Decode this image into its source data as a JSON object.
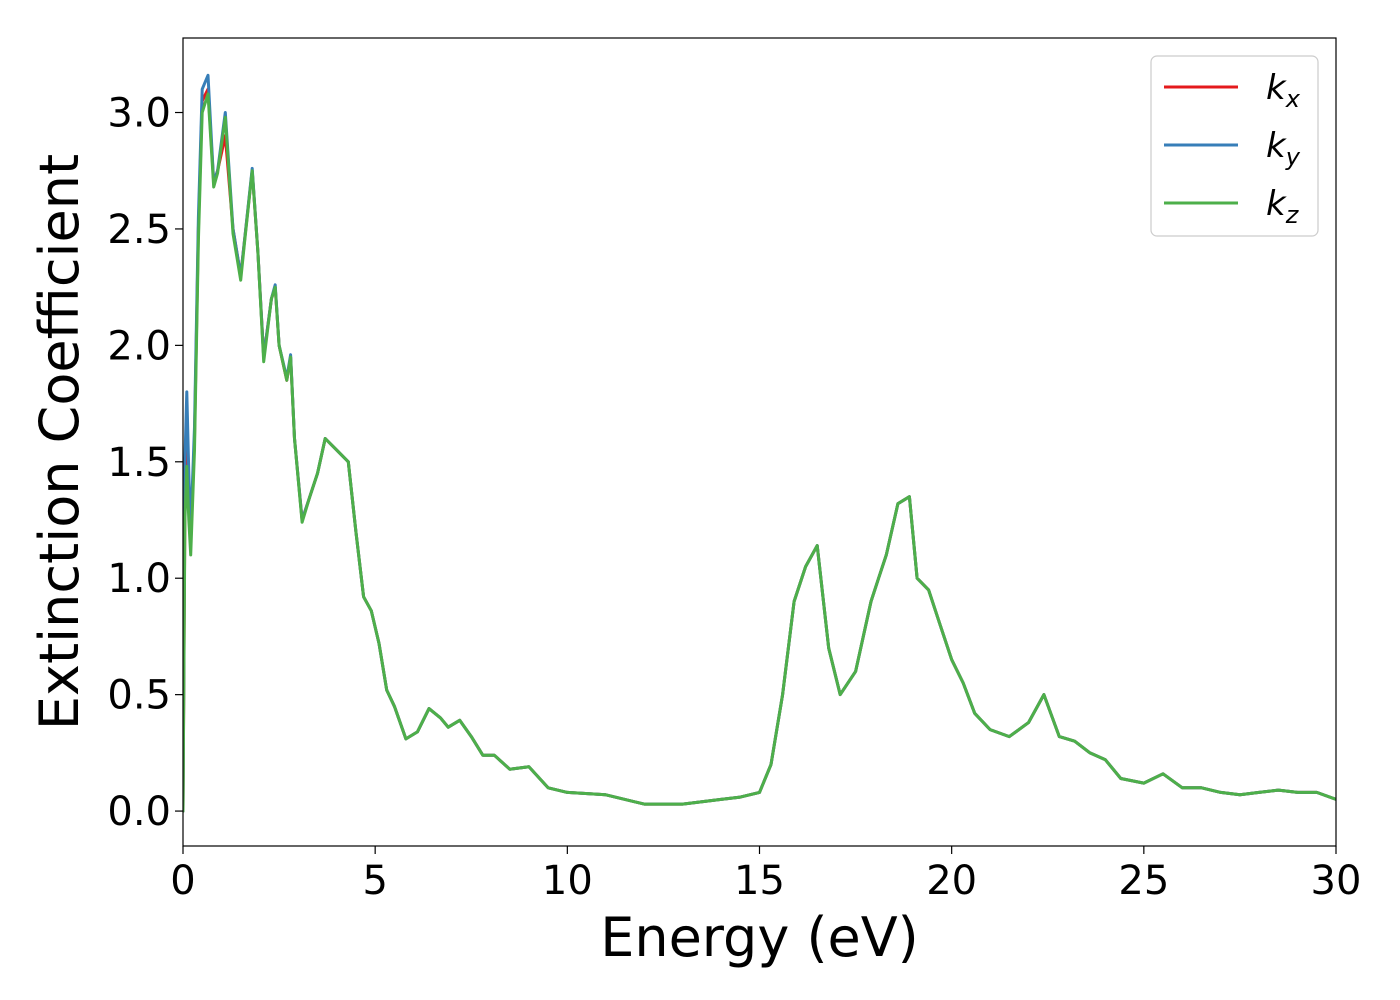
{
  "chart_data": {
    "type": "line",
    "title": "",
    "xlabel": "Energy (eV)",
    "ylabel": "Extinction Coefficient",
    "xlim": [
      0,
      30
    ],
    "ylim": [
      -0.15,
      3.32
    ],
    "xticks": [
      0,
      5,
      10,
      15,
      20,
      25,
      30
    ],
    "xtick_labels": [
      "0",
      "5",
      "10",
      "15",
      "20",
      "25",
      "30"
    ],
    "yticks": [
      0.0,
      0.5,
      1.0,
      1.5,
      2.0,
      2.5,
      3.0
    ],
    "ytick_labels": [
      "0.0",
      "0.5",
      "1.0",
      "1.5",
      "2.0",
      "2.5",
      "3.0"
    ],
    "grid": false,
    "legend_position": "top-right",
    "series": [
      {
        "name": "k",
        "subscript": "x",
        "color": "#e41a1c",
        "x": [
          0,
          0.05,
          0.1,
          0.15,
          0.2,
          0.3,
          0.4,
          0.5,
          0.65,
          0.8,
          0.9,
          1.1,
          1.3,
          1.5,
          1.6,
          1.8,
          1.95,
          2.1,
          2.3,
          2.4,
          2.5,
          2.7,
          2.8,
          2.9,
          3.1,
          3.3,
          3.5,
          3.7,
          4.0,
          4.3,
          4.5,
          4.7,
          4.9,
          5.1,
          5.3,
          5.5,
          5.8,
          6.1,
          6.4,
          6.7,
          6.9,
          7.2,
          7.5,
          7.8,
          8.1,
          8.5,
          9.0,
          9.5,
          10,
          11,
          12,
          13,
          14,
          14.5,
          15,
          15.3,
          15.6,
          15.9,
          16.2,
          16.5,
          16.8,
          17.1,
          17.5,
          17.9,
          18.1,
          18.3,
          18.6,
          18.9,
          19.1,
          19.4,
          19.7,
          20.0,
          20.3,
          20.6,
          21.0,
          21.5,
          22.0,
          22.4,
          22.8,
          23.2,
          23.6,
          24.0,
          24.4,
          25.0,
          25.5,
          26.0,
          26.5,
          27.0,
          27.5,
          28.0,
          28.5,
          29.0,
          29.5,
          30
        ],
        "y": [
          0,
          1.3,
          1.55,
          1.3,
          1.15,
          1.6,
          2.5,
          3.05,
          3.1,
          2.7,
          2.75,
          2.9,
          2.5,
          2.3,
          2.45,
          2.75,
          2.4,
          1.95,
          2.2,
          2.25,
          2.0,
          1.85,
          1.95,
          1.6,
          1.25,
          1.35,
          1.45,
          1.6,
          1.55,
          1.5,
          1.2,
          0.92,
          0.86,
          0.72,
          0.52,
          0.45,
          0.31,
          0.34,
          0.44,
          0.4,
          0.36,
          0.39,
          0.32,
          0.24,
          0.24,
          0.18,
          0.19,
          0.1,
          0.08,
          0.07,
          0.03,
          0.03,
          0.05,
          0.06,
          0.08,
          0.2,
          0.5,
          0.9,
          1.05,
          1.14,
          0.7,
          0.5,
          0.6,
          0.9,
          1.0,
          1.1,
          1.32,
          1.35,
          1.0,
          0.95,
          0.8,
          0.65,
          0.55,
          0.42,
          0.35,
          0.32,
          0.38,
          0.5,
          0.32,
          0.3,
          0.25,
          0.22,
          0.14,
          0.12,
          0.16,
          0.1,
          0.1,
          0.08,
          0.07,
          0.08,
          0.09,
          0.08,
          0.08,
          0.05
        ]
      },
      {
        "name": "k",
        "subscript": "y",
        "color": "#377eb8",
        "x": [
          0,
          0.05,
          0.1,
          0.15,
          0.2,
          0.3,
          0.4,
          0.5,
          0.65,
          0.8,
          0.9,
          1.1,
          1.3,
          1.5,
          1.6,
          1.8,
          1.95,
          2.1,
          2.3,
          2.4,
          2.5,
          2.7,
          2.8,
          2.9,
          3.1,
          3.3,
          3.5,
          3.7,
          4.0,
          4.3,
          4.5,
          4.7,
          4.9,
          5.1,
          5.3,
          5.5,
          5.8,
          6.1,
          6.4,
          6.7,
          6.9,
          7.2,
          7.5,
          7.8,
          8.1,
          8.5,
          9.0,
          9.5,
          10,
          11,
          12,
          13,
          14,
          14.5,
          15,
          15.3,
          15.6,
          15.9,
          16.2,
          16.5,
          16.8,
          17.1,
          17.5,
          17.9,
          18.1,
          18.3,
          18.6,
          18.9,
          19.1,
          19.4,
          19.7,
          20.0,
          20.3,
          20.6,
          21.0,
          21.5,
          22.0,
          22.4,
          22.8,
          23.2,
          23.6,
          24.0,
          24.4,
          25.0,
          25.5,
          26.0,
          26.5,
          27.0,
          27.5,
          28.0,
          28.5,
          29.0,
          29.5,
          30
        ],
        "y": [
          0,
          1.5,
          1.8,
          1.45,
          1.2,
          1.65,
          2.55,
          3.1,
          3.16,
          2.7,
          2.75,
          3.0,
          2.5,
          2.3,
          2.45,
          2.76,
          2.4,
          1.95,
          2.2,
          2.26,
          2.0,
          1.86,
          1.96,
          1.6,
          1.25,
          1.35,
          1.45,
          1.6,
          1.55,
          1.5,
          1.2,
          0.92,
          0.86,
          0.72,
          0.52,
          0.45,
          0.31,
          0.34,
          0.44,
          0.4,
          0.36,
          0.39,
          0.32,
          0.24,
          0.24,
          0.18,
          0.19,
          0.1,
          0.08,
          0.07,
          0.03,
          0.03,
          0.05,
          0.06,
          0.08,
          0.2,
          0.5,
          0.9,
          1.05,
          1.14,
          0.7,
          0.5,
          0.6,
          0.9,
          1.0,
          1.1,
          1.32,
          1.35,
          1.0,
          0.95,
          0.8,
          0.65,
          0.55,
          0.42,
          0.35,
          0.32,
          0.38,
          0.5,
          0.32,
          0.3,
          0.25,
          0.22,
          0.14,
          0.12,
          0.16,
          0.1,
          0.1,
          0.08,
          0.07,
          0.08,
          0.09,
          0.08,
          0.08,
          0.05
        ]
      },
      {
        "name": "k",
        "subscript": "z",
        "color": "#4daf4a",
        "x": [
          0,
          0.05,
          0.1,
          0.15,
          0.2,
          0.3,
          0.4,
          0.5,
          0.65,
          0.8,
          0.9,
          1.1,
          1.3,
          1.5,
          1.6,
          1.8,
          1.95,
          2.1,
          2.3,
          2.4,
          2.5,
          2.7,
          2.8,
          2.9,
          3.1,
          3.3,
          3.5,
          3.7,
          4.0,
          4.3,
          4.5,
          4.7,
          4.9,
          5.1,
          5.3,
          5.5,
          5.8,
          6.1,
          6.4,
          6.7,
          6.9,
          7.2,
          7.5,
          7.8,
          8.1,
          8.5,
          9.0,
          9.5,
          10,
          11,
          12,
          13,
          14,
          14.5,
          15,
          15.3,
          15.6,
          15.9,
          16.2,
          16.5,
          16.8,
          17.1,
          17.5,
          17.9,
          18.1,
          18.3,
          18.6,
          18.9,
          19.1,
          19.4,
          19.7,
          20.0,
          20.3,
          20.6,
          21.0,
          21.5,
          22.0,
          22.4,
          22.8,
          23.2,
          23.6,
          24.0,
          24.4,
          25.0,
          25.5,
          26.0,
          26.5,
          27.0,
          27.5,
          28.0,
          28.5,
          29.0,
          29.5,
          30
        ],
        "y": [
          0,
          1.25,
          1.48,
          1.25,
          1.1,
          1.55,
          2.45,
          3.0,
          3.08,
          2.68,
          2.74,
          2.98,
          2.48,
          2.28,
          2.44,
          2.75,
          2.4,
          1.93,
          2.2,
          2.25,
          2.0,
          1.85,
          1.95,
          1.6,
          1.24,
          1.35,
          1.45,
          1.6,
          1.55,
          1.5,
          1.2,
          0.92,
          0.86,
          0.72,
          0.52,
          0.45,
          0.31,
          0.34,
          0.44,
          0.4,
          0.36,
          0.39,
          0.32,
          0.24,
          0.24,
          0.18,
          0.19,
          0.1,
          0.08,
          0.07,
          0.03,
          0.03,
          0.05,
          0.06,
          0.08,
          0.2,
          0.5,
          0.9,
          1.05,
          1.14,
          0.7,
          0.5,
          0.6,
          0.9,
          1.0,
          1.1,
          1.32,
          1.35,
          1.0,
          0.95,
          0.8,
          0.65,
          0.55,
          0.42,
          0.35,
          0.32,
          0.38,
          0.5,
          0.32,
          0.3,
          0.25,
          0.22,
          0.14,
          0.12,
          0.16,
          0.1,
          0.1,
          0.08,
          0.07,
          0.08,
          0.09,
          0.08,
          0.08,
          0.05
        ]
      }
    ]
  }
}
